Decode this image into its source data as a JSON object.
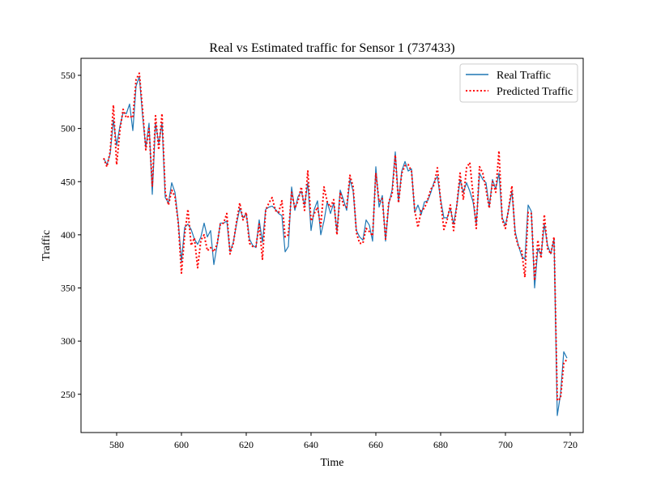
{
  "chart_data": {
    "type": "line",
    "title": "Real vs Estimated traffic for Sensor 1 (737433)",
    "xlabel": "Time",
    "ylabel": "Traffic",
    "xlim": [
      569,
      724
    ],
    "ylim": [
      214,
      566
    ],
    "xticks": [
      580,
      600,
      620,
      640,
      660,
      680,
      700,
      720
    ],
    "yticks": [
      250,
      300,
      350,
      400,
      450,
      500,
      550
    ],
    "grid": false,
    "legend_position": "top-right",
    "x_start": 576,
    "series": [
      {
        "name": "Real Traffic",
        "color": "#1f77b4",
        "style": "solid",
        "values": [
          472,
          466,
          476,
          508,
          484,
          502,
          515,
          514,
          523,
          498,
          540,
          549,
          512,
          482,
          505,
          438,
          505,
          486,
          505,
          435,
          430,
          449,
          440,
          413,
          375,
          407,
          410,
          405,
          396,
          391,
          398,
          411,
          398,
          404,
          372,
          390,
          411,
          411,
          413,
          384,
          393,
          410,
          425,
          416,
          420,
          396,
          390,
          388,
          414,
          393,
          424,
          426,
          427,
          424,
          420,
          418,
          384,
          389,
          445,
          423,
          436,
          441,
          428,
          449,
          404,
          424,
          432,
          400,
          413,
          431,
          420,
          430,
          403,
          442,
          433,
          423,
          452,
          441,
          404,
          398,
          395,
          414,
          409,
          394,
          464,
          426,
          437,
          394,
          429,
          442,
          478,
          431,
          460,
          469,
          460,
          462,
          421,
          428,
          419,
          431,
          432,
          440,
          450,
          455,
          433,
          416,
          416,
          425,
          410,
          428,
          452,
          440,
          449,
          441,
          431,
          410,
          458,
          452,
          449,
          426,
          452,
          443,
          458,
          416,
          409,
          424,
          441,
          403,
          390,
          380,
          377,
          428,
          422,
          350,
          387,
          381,
          410,
          390,
          382,
          396,
          230,
          250,
          290,
          284
        ]
      },
      {
        "name": "Predicted Traffic",
        "color": "#ff0000",
        "style": "dotted",
        "values": [
          472,
          464,
          478,
          522,
          466,
          498,
          518,
          510,
          512,
          510,
          546,
          552,
          518,
          480,
          500,
          446,
          512,
          480,
          514,
          440,
          428,
          442,
          436,
          412,
          364,
          400,
          424,
          390,
          397,
          369,
          395,
          400,
          385,
          388,
          384,
          391,
          410,
          411,
          420,
          382,
          392,
          412,
          430,
          414,
          421,
          392,
          389,
          389,
          410,
          377,
          423,
          430,
          435,
          423,
          421,
          432,
          398,
          400,
          440,
          425,
          432,
          445,
          423,
          460,
          413,
          420,
          426,
          408,
          445,
          431,
          426,
          433,
          400,
          440,
          428,
          426,
          456,
          445,
          402,
          392,
          392,
          406,
          403,
          399,
          458,
          431,
          434,
          396,
          431,
          438,
          475,
          430,
          458,
          465,
          466,
          460,
          423,
          407,
          423,
          425,
          433,
          443,
          447,
          463,
          432,
          405,
          414,
          428,
          404,
          428,
          458,
          433,
          463,
          468,
          438,
          406,
          464,
          458,
          443,
          425,
          450,
          440,
          479,
          414,
          406,
          425,
          446,
          400,
          389,
          385,
          360,
          421,
          420,
          357,
          395,
          378,
          419,
          387,
          382,
          398,
          244,
          246,
          279,
          283
        ]
      }
    ]
  }
}
